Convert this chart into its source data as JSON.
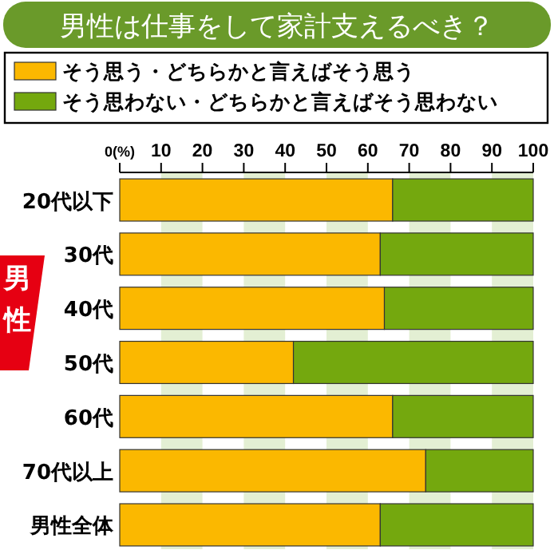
{
  "chart_data": {
    "type": "bar",
    "orientation": "horizontal",
    "stacked": true,
    "title": "男性は仕事をして家計支えるべき？",
    "categories": [
      "20代以下",
      "30代",
      "40代",
      "50代",
      "60代",
      "70代以上",
      "男性全体"
    ],
    "series": [
      {
        "name": "そう思う・どちらかと言えばそう思う",
        "color": "#fbb800",
        "values": [
          66,
          63,
          64,
          42,
          66,
          74,
          63
        ]
      },
      {
        "name": "そう思わない・どちらかと言えばそう思わない",
        "color": "#74a80e",
        "values": [
          34,
          37,
          36,
          58,
          34,
          26,
          37
        ]
      }
    ],
    "xlim": [
      0,
      100
    ],
    "xticks": [
      {
        "value": 0,
        "label": "0(%)"
      },
      10,
      20,
      30,
      40,
      50,
      60,
      70,
      80,
      90,
      100
    ],
    "bands": [
      {
        "axis": "x",
        "from": 10,
        "to": 20,
        "color": "#e3efd3"
      },
      {
        "axis": "x",
        "from": 30,
        "to": 40,
        "color": "#e3efd3"
      },
      {
        "axis": "x",
        "from": 50,
        "to": 60,
        "color": "#e3efd3"
      },
      {
        "axis": "x",
        "from": 70,
        "to": 80,
        "color": "#e3efd3"
      },
      {
        "axis": "x",
        "from": 90,
        "to": 100,
        "color": "#e3efd3"
      }
    ],
    "annotations": [
      "男性"
    ],
    "legend": "top"
  }
}
